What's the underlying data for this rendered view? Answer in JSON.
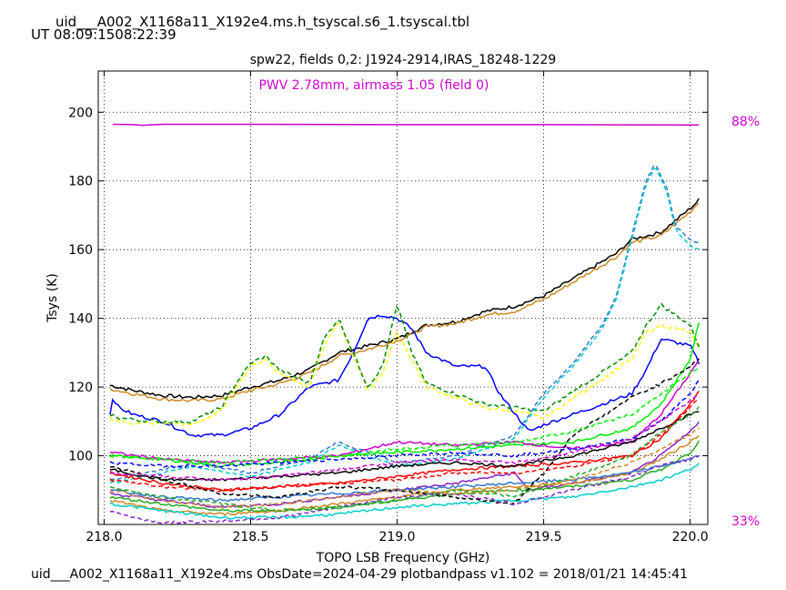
{
  "header": {
    "file_title": "uid___A002_X1168a11_X192e4.ms.h_tsyscal.s6_1.tsyscal.tbl",
    "time_range": "UT 08:09:1508:22:39"
  },
  "footer": {
    "text": "uid___A002_X1168a11_X192e4.ms  ObsDate=2024-04-29   plotbandpass v1.102 = 2018/01/21 14:45:41"
  },
  "chart_data": {
    "type": "line",
    "title": "spw22,  fields 0,2: J1924-2914,IRAS_18248-1229",
    "annotation": "PWV 2.78mm, airmass 1.05 (field 0)",
    "xlabel": "TOPO LSB Frequency (GHz)",
    "ylabel": "Tsys (K)",
    "xlim": [
      217.98,
      220.06
    ],
    "ylim": [
      80,
      212
    ],
    "xticks": [
      "218.0",
      "218.5",
      "219.0",
      "219.5",
      "220.0"
    ],
    "yticks": [
      "100",
      "120",
      "140",
      "160",
      "180",
      "200"
    ],
    "grid": true,
    "right_axis": {
      "labels": [
        "88%",
        "33%"
      ],
      "label_color": "#cc00cc",
      "transmission_curve": {
        "x": [
          218.03,
          218.1,
          218.13,
          218.2,
          218.5,
          219.0,
          219.5,
          220.0,
          220.03
        ],
        "values": [
          196.5,
          196.4,
          196.2,
          196.5,
          196.5,
          196.4,
          196.4,
          196.3,
          196.3
        ],
        "color": "#cc00cc"
      }
    },
    "series": [
      {
        "color": "#000000",
        "dash": false,
        "noise": 0.5,
        "x": [
          218.02,
          218.1,
          218.2,
          218.3,
          218.4,
          218.5,
          218.6,
          218.7,
          218.8,
          218.9,
          219.0,
          219.1,
          219.2,
          219.3,
          219.4,
          219.5,
          219.75,
          219.8,
          219.9,
          220.0,
          220.03
        ],
        "y": [
          120.5,
          119,
          117.5,
          117,
          117.5,
          120,
          122,
          125,
          130,
          132,
          134,
          138,
          139,
          142,
          143.5,
          146.5,
          159,
          163,
          165,
          172,
          174.5
        ]
      },
      {
        "color": "#cc8822",
        "dash": false,
        "noise": 0.5,
        "x": [
          218.02,
          218.1,
          218.2,
          218.3,
          218.4,
          218.5,
          218.6,
          218.7,
          218.8,
          218.9,
          219.0,
          219.1,
          219.2,
          219.3,
          219.4,
          219.5,
          219.75,
          219.8,
          219.9,
          220.0,
          220.03
        ],
        "y": [
          119.5,
          118,
          116.5,
          116,
          116.5,
          119,
          121,
          124,
          129,
          131,
          133.5,
          137.5,
          138.5,
          141,
          142,
          145.5,
          158,
          162,
          164,
          171,
          174
        ]
      },
      {
        "color": "#0000ff",
        "dash": false,
        "noise": 0.5,
        "x": [
          218.02,
          218.03,
          218.05,
          218.1,
          218.2,
          218.3,
          218.4,
          218.5,
          218.6,
          218.7,
          218.8,
          218.85,
          218.9,
          218.95,
          219.0,
          219.05,
          219.1,
          219.2,
          219.3,
          219.35,
          219.45,
          219.5,
          219.8,
          219.85,
          219.9,
          220.0,
          220.03
        ],
        "y": [
          112,
          117,
          114,
          112,
          110,
          106,
          106,
          108,
          112,
          120,
          122,
          130,
          140,
          141,
          140,
          137,
          130,
          126,
          126,
          118,
          107,
          109,
          118,
          125,
          134,
          132,
          127
        ]
      },
      {
        "color": "#ffff00",
        "dash": true,
        "noise": 0.5,
        "x": [
          218.02,
          218.05,
          218.1,
          218.2,
          218.3,
          218.4,
          218.45,
          218.5,
          218.55,
          218.6,
          218.7,
          218.75,
          218.8,
          218.9,
          218.95,
          219.0,
          219.05,
          219.1,
          219.2,
          219.3,
          219.4,
          219.5,
          219.8,
          219.85,
          219.9,
          220.0,
          220.03
        ],
        "y": [
          111,
          110,
          109.5,
          109.5,
          109,
          113,
          120,
          126,
          128,
          124,
          120,
          132,
          139,
          119,
          124,
          136,
          128,
          120,
          117,
          114,
          113,
          111,
          128,
          136,
          138,
          136,
          131
        ]
      },
      {
        "color": "#008800",
        "dash": true,
        "noise": 0.5,
        "x": [
          218.02,
          218.05,
          218.1,
          218.2,
          218.3,
          218.4,
          218.45,
          218.5,
          218.55,
          218.6,
          218.7,
          218.75,
          218.8,
          218.9,
          218.95,
          219.0,
          219.05,
          219.1,
          219.2,
          219.3,
          219.4,
          219.5,
          219.8,
          219.85,
          219.9,
          220.0,
          220.03
        ],
        "y": [
          112,
          111,
          110.5,
          110,
          110,
          114,
          121,
          127,
          129,
          125,
          121,
          134,
          140,
          120,
          126,
          144,
          130,
          121,
          118,
          115,
          114,
          113,
          130,
          138,
          144,
          138,
          132
        ]
      },
      {
        "color": "#3377cc",
        "dash": true,
        "noise": 0.3,
        "x": [
          218.02,
          218.2,
          218.3,
          218.5,
          218.7,
          218.8,
          219.0,
          219.2,
          219.3,
          219.4,
          219.45,
          219.5,
          219.6,
          219.7,
          219.75,
          219.8,
          219.85,
          219.88,
          219.92,
          219.95,
          220.0,
          220.03
        ],
        "y": [
          93,
          96,
          98,
          95,
          99,
          104,
          98,
          100,
          103,
          106,
          112,
          118,
          127,
          138,
          147,
          164,
          180,
          185,
          178,
          167,
          163,
          162
        ]
      },
      {
        "color": "#00cccc",
        "dash": true,
        "noise": 0.3,
        "x": [
          218.02,
          218.2,
          218.3,
          218.5,
          218.7,
          218.8,
          219.0,
          219.2,
          219.3,
          219.4,
          219.45,
          219.5,
          219.6,
          219.7,
          219.75,
          219.8,
          219.85,
          219.88,
          219.92,
          219.95,
          220.0,
          220.03
        ],
        "y": [
          92,
          95,
          97,
          94,
          98,
          103,
          97,
          99,
          102,
          105,
          111,
          117,
          126,
          137,
          146,
          163,
          179,
          184,
          177,
          166,
          161,
          160
        ]
      },
      {
        "color": "#00ee00",
        "dash": false,
        "noise": 0.4,
        "x": [
          218.02,
          218.2,
          218.4,
          218.6,
          218.8,
          219.0,
          219.2,
          219.4,
          219.6,
          219.8,
          219.9,
          220.0,
          220.03
        ],
        "y": [
          100,
          99,
          97,
          98,
          100,
          101,
          102,
          103,
          104,
          108,
          115,
          128,
          139
        ]
      },
      {
        "color": "#ff0000",
        "dash": false,
        "noise": 0.4,
        "x": [
          218.02,
          218.2,
          218.4,
          218.6,
          218.8,
          219.0,
          219.2,
          219.4,
          219.6,
          219.8,
          219.9,
          220.0,
          220.03
        ],
        "y": [
          95,
          92,
          90,
          91,
          92,
          94,
          96,
          97,
          98,
          100,
          105,
          115,
          119
        ]
      },
      {
        "color": "#cc00cc",
        "dash": false,
        "noise": 0.4,
        "x": [
          218.02,
          218.2,
          218.4,
          218.6,
          218.8,
          219.0,
          219.2,
          219.4,
          219.6,
          219.8,
          219.9,
          220.0,
          220.03
        ],
        "y": [
          101,
          99,
          98,
          99,
          100,
          104,
          103,
          104,
          102,
          104,
          112,
          124,
          128
        ]
      },
      {
        "color": "#000000",
        "dash": false,
        "noise": 0.4,
        "x": [
          218.02,
          218.2,
          218.4,
          218.6,
          218.8,
          219.0,
          219.2,
          219.4,
          219.6,
          219.8,
          219.9,
          220.0,
          220.03
        ],
        "y": [
          96,
          93,
          93,
          94,
          95,
          97,
          98,
          97,
          100,
          104,
          108,
          112,
          113
        ]
      },
      {
        "color": "#8822cc",
        "dash": false,
        "noise": 0.4,
        "x": [
          218.02,
          218.2,
          218.4,
          218.6,
          218.8,
          219.0,
          219.2,
          219.4,
          219.45,
          219.6,
          219.8,
          219.9,
          220.0,
          220.03
        ],
        "y": [
          89,
          87,
          85,
          86,
          88,
          90,
          92,
          95,
          90,
          92,
          95,
          100,
          107,
          110
        ]
      },
      {
        "color": "#22aa22",
        "dash": false,
        "noise": 0.4,
        "x": [
          218.02,
          218.2,
          218.4,
          218.6,
          218.8,
          219.0,
          219.2,
          219.4,
          219.6,
          219.8,
          219.9,
          220.0,
          220.03
        ],
        "y": [
          88,
          86,
          84,
          84,
          85,
          87,
          89,
          90,
          91,
          93,
          96,
          101,
          104
        ]
      },
      {
        "color": "#cc8822",
        "dash": false,
        "noise": 0.4,
        "x": [
          218.02,
          218.2,
          218.4,
          218.6,
          218.8,
          219.0,
          219.2,
          219.4,
          219.6,
          219.8,
          219.9,
          220.0,
          220.03
        ],
        "y": [
          87,
          84,
          83,
          84,
          86,
          88,
          90,
          91,
          92,
          95,
          99,
          104,
          106
        ]
      },
      {
        "color": "#00cccc",
        "dash": false,
        "noise": 0.4,
        "x": [
          218.02,
          218.2,
          218.4,
          218.6,
          218.8,
          219.0,
          219.2,
          219.4,
          219.6,
          219.8,
          219.9,
          220.0,
          220.03
        ],
        "y": [
          86,
          84,
          82,
          82,
          83,
          85,
          86,
          87,
          88,
          91,
          93,
          96,
          98
        ]
      },
      {
        "color": "#3377cc",
        "dash": false,
        "noise": 0.4,
        "x": [
          218.02,
          218.2,
          218.4,
          218.6,
          218.8,
          219.0,
          219.2,
          219.4,
          219.6,
          219.8,
          219.9,
          220.0,
          220.03
        ],
        "y": [
          90,
          88,
          87,
          88,
          89,
          90,
          91,
          92,
          93,
          95,
          97,
          99,
          100
        ]
      },
      {
        "color": "#0000ff",
        "dash": true,
        "noise": 0.4,
        "x": [
          218.02,
          218.2,
          218.4,
          218.6,
          218.8,
          219.0,
          219.2,
          219.4,
          219.6,
          219.8,
          219.9,
          220.0,
          220.03
        ],
        "y": [
          98,
          97,
          97,
          98,
          99,
          100,
          101,
          100,
          102,
          105,
          110,
          118,
          122
        ]
      },
      {
        "color": "#ff0000",
        "dash": true,
        "noise": 0.4,
        "x": [
          218.02,
          218.2,
          218.4,
          218.6,
          218.8,
          219.0,
          219.2,
          219.4,
          219.6,
          219.8,
          219.9,
          220.0,
          220.03
        ],
        "y": [
          93,
          91,
          90,
          91,
          92,
          93,
          95,
          95,
          97,
          100,
          106,
          114,
          117
        ]
      },
      {
        "color": "#000000",
        "dash": true,
        "noise": 0.4,
        "x": [
          218.02,
          218.2,
          218.4,
          218.6,
          218.8,
          219.0,
          219.2,
          219.4,
          219.5,
          219.6,
          219.8,
          219.9,
          220.0,
          220.03
        ],
        "y": [
          97,
          93,
          89,
          88,
          91,
          90,
          88,
          86,
          95,
          106,
          117,
          121,
          126,
          128
        ]
      },
      {
        "color": "#8822cc",
        "dash": true,
        "noise": 0.4,
        "x": [
          218.02,
          218.1,
          218.2,
          218.4,
          218.6,
          218.8,
          219.0,
          219.2,
          219.4,
          219.6,
          219.8,
          219.9,
          220.0,
          220.03
        ],
        "y": [
          84,
          82,
          80.5,
          81,
          82,
          85,
          88,
          89,
          86,
          90,
          94,
          97,
          99,
          100
        ]
      },
      {
        "color": "#22aa22",
        "dash": true,
        "noise": 0.4,
        "x": [
          218.02,
          218.2,
          218.4,
          218.6,
          218.8,
          219.0,
          219.2,
          219.4,
          219.6,
          219.8,
          219.9,
          220.0,
          220.03
        ],
        "y": [
          91,
          88,
          86,
          84,
          85,
          87,
          90,
          88,
          94,
          100,
          107,
          112,
          114
        ]
      },
      {
        "color": "#00ee00",
        "dash": true,
        "noise": 0.4,
        "x": [
          218.02,
          218.2,
          218.4,
          218.6,
          218.8,
          219.0,
          219.2,
          219.4,
          219.6,
          219.8,
          219.9,
          220.0,
          220.03
        ],
        "y": [
          100,
          99,
          98,
          99,
          100,
          102,
          103,
          104,
          107,
          112,
          118,
          124,
          126
        ]
      },
      {
        "color": "#cc00cc",
        "dash": true,
        "noise": 0.4,
        "x": [
          218.02,
          218.2,
          218.4,
          218.6,
          218.8,
          219.0,
          219.2,
          219.4,
          219.6,
          219.8,
          219.9,
          220.0,
          220.03
        ],
        "y": [
          95,
          94,
          93,
          94,
          96,
          98,
          99,
          98,
          101,
          105,
          110,
          116,
          118
        ]
      },
      {
        "color": "#cc8822",
        "dash": true,
        "noise": 0.4,
        "x": [
          218.02,
          218.2,
          218.4,
          218.6,
          218.8,
          219.0,
          219.2,
          219.4,
          219.6,
          219.8,
          219.9,
          220.0,
          220.03
        ],
        "y": [
          90,
          87,
          85,
          86,
          88,
          90,
          89,
          90,
          93,
          98,
          102,
          106,
          108
        ]
      }
    ]
  }
}
